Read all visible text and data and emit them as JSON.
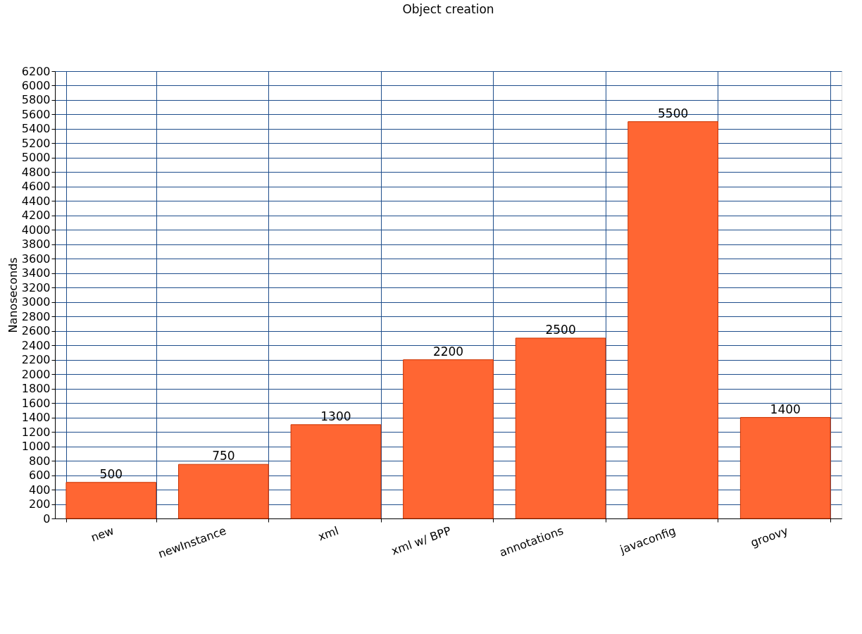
{
  "chart_data": {
    "type": "bar",
    "title": "Object creation",
    "ylabel": "Nanoseconds",
    "categories": [
      "new",
      "newInstance",
      "xml",
      "xml w/ BPP",
      "annotations",
      "javaconfig",
      "groovy"
    ],
    "values": [
      500,
      750,
      1300,
      2200,
      2500,
      5500,
      1400
    ],
    "color": "#ff6633",
    "ylim": [
      0,
      6200
    ],
    "yticks": [
      0,
      200,
      400,
      600,
      800,
      1000,
      1200,
      1400,
      1600,
      1800,
      2000,
      2200,
      2400,
      2600,
      2800,
      3000,
      3200,
      3400,
      3600,
      3800,
      4000,
      4200,
      4400,
      4600,
      4800,
      5000,
      5200,
      5400,
      5600,
      5800,
      6000,
      6200
    ],
    "grid": true,
    "data_labels": true
  }
}
